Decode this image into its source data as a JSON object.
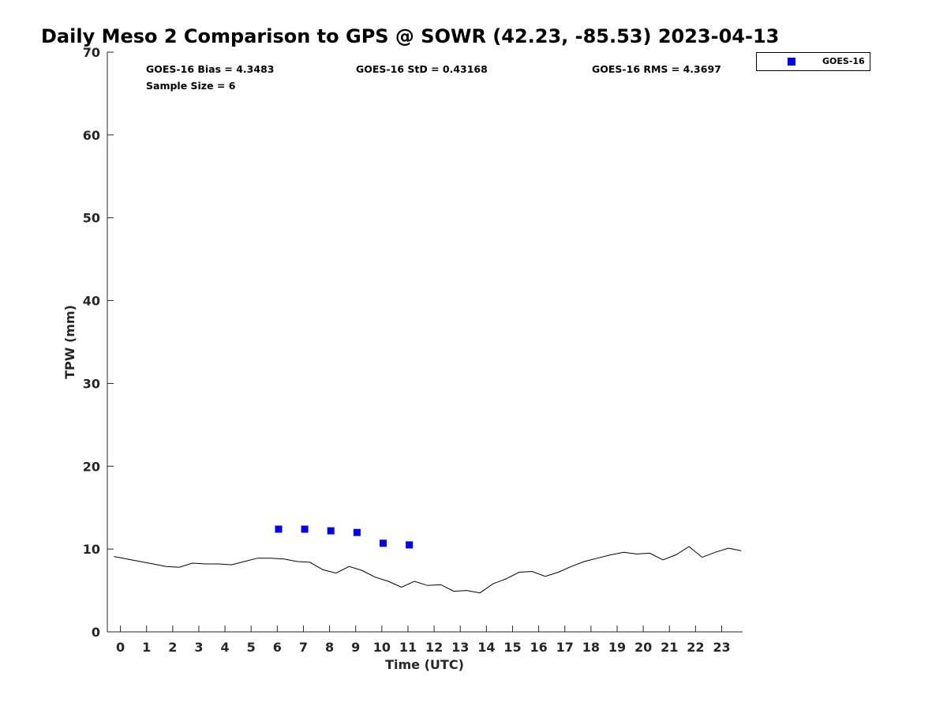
{
  "chart_data": {
    "type": "line",
    "title": "Daily Meso 2 Comparison to GPS @ SOWR (42.23, -85.53) 2023-04-13",
    "xlabel": "Time (UTC)",
    "ylabel": "TPW (mm)",
    "xlim": [
      -0.5,
      23.8
    ],
    "ylim": [
      0,
      70
    ],
    "xticks": [
      0,
      1,
      2,
      3,
      4,
      5,
      6,
      7,
      8,
      9,
      10,
      11,
      12,
      13,
      14,
      15,
      16,
      17,
      18,
      19,
      20,
      21,
      22,
      23
    ],
    "yticks": [
      0,
      10,
      20,
      30,
      40,
      50,
      60,
      70
    ],
    "grid": false,
    "legend_position": "top-right, outside",
    "stats": {
      "bias": "GOES-16 Bias = 4.3483",
      "std": "GOES-16 StD = 0.43168",
      "rms": "GOES-16 RMS = 4.3697",
      "sample": "Sample Size = 6"
    },
    "series": [
      {
        "name": "GOES-16",
        "kind": "scatter",
        "marker": "square",
        "color": "#0000ee",
        "x": [
          6.05,
          7.05,
          8.05,
          9.05,
          10.05,
          11.05
        ],
        "y": [
          12.4,
          12.4,
          12.2,
          12.0,
          10.7,
          10.5
        ]
      },
      {
        "kind": "line",
        "color": "#000000",
        "x": [
          -0.25,
          0.25,
          0.75,
          1.25,
          1.75,
          2.25,
          2.75,
          3.25,
          3.75,
          4.25,
          4.75,
          5.25,
          5.75,
          6.25,
          6.75,
          7.25,
          7.75,
          8.25,
          8.75,
          9.25,
          9.75,
          10.25,
          10.75,
          11.25,
          11.75,
          12.25,
          12.75,
          13.25,
          13.75,
          14.25,
          14.75,
          15.25,
          15.75,
          16.25,
          16.75,
          17.25,
          17.75,
          18.25,
          18.75,
          19.25,
          19.75,
          20.25,
          20.75,
          21.25,
          21.75,
          22.25,
          22.75,
          23.25,
          23.75
        ],
        "y": [
          9.1,
          8.8,
          8.5,
          8.2,
          7.9,
          7.8,
          8.3,
          8.2,
          8.2,
          8.1,
          8.5,
          8.9,
          8.9,
          8.8,
          8.5,
          8.4,
          7.5,
          7.1,
          7.9,
          7.4,
          6.6,
          6.1,
          5.4,
          6.1,
          5.6,
          5.7,
          4.9,
          5.0,
          4.7,
          5.8,
          6.4,
          7.2,
          7.3,
          6.7,
          7.2,
          7.9,
          8.5,
          8.9,
          9.3,
          9.6,
          9.4,
          9.5,
          8.7,
          9.3,
          10.3,
          9.0,
          9.6,
          10.1,
          9.8
        ]
      }
    ]
  }
}
